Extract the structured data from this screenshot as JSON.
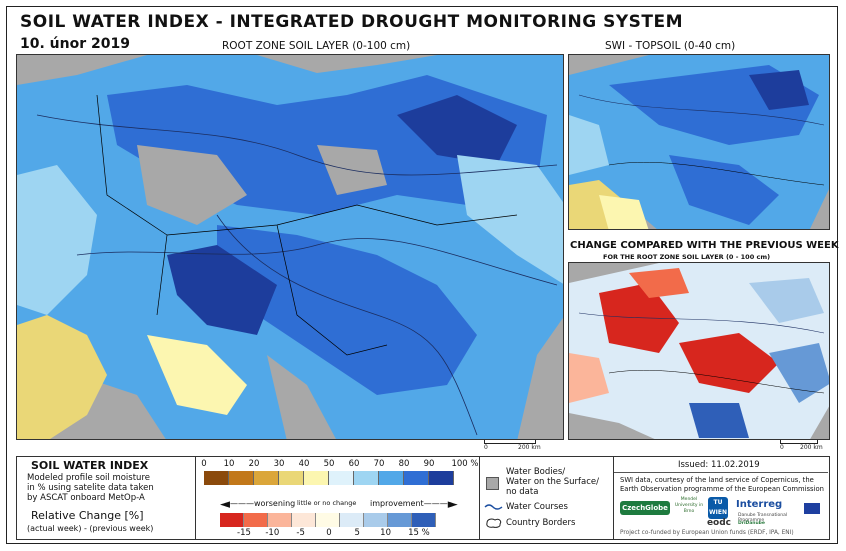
{
  "header": {
    "title": "SOIL WATER INDEX - INTEGRATED DROUGHT MONITORING SYSTEM",
    "date": "10. únor 2019",
    "main_subtitle": "ROOT ZONE SOIL LAYER (0-100 cm)",
    "topsoil_title": "SWI - TOPSOIL (0-40 cm)",
    "change_title": "CHANGE COMPARED WITH THE PREVIOUS WEEK",
    "change_subtitle": "FOR THE ROOT ZONE SOIL LAYER (0 - 100 cm)"
  },
  "scale_bars": {
    "main": {
      "zero": "0",
      "distance": "200 km"
    },
    "small": {
      "zero": "0",
      "distance": "200 km"
    }
  },
  "legend_left": {
    "title": "SOIL WATER INDEX",
    "desc1": "Modeled profile soil moisture",
    "desc2": "in % using satelite data taken",
    "desc3": "by ASCAT onboard MetOp-A",
    "change_title": "Relative Change [%]",
    "change_desc": "(actual week) - (previous week)"
  },
  "swi_scale": {
    "ticks": [
      "0",
      "10",
      "20",
      "30",
      "40",
      "50",
      "60",
      "70",
      "80",
      "90",
      "100 %"
    ],
    "colors": [
      "#8b4a0c",
      "#c2781a",
      "#dba63a",
      "#ead777",
      "#fcf6b0",
      "#dff2fb",
      "#9ed5f2",
      "#52a8e8",
      "#2f6ed4",
      "#1d3d9c"
    ]
  },
  "change_scale": {
    "worsening": "worsening",
    "little": "little or no change",
    "improvement": "improvement",
    "ticks": [
      "-15",
      "-10",
      "-5",
      "0",
      "5",
      "10",
      "15 %"
    ],
    "colors": [
      "#d7261e",
      "#f26b4a",
      "#fbb59a",
      "#fde7d8",
      "#fffbe5",
      "#dcebf7",
      "#a9cbea",
      "#6699d6",
      "#2f5fb8"
    ]
  },
  "legend_mid": {
    "water_bodies": "Water Bodies/",
    "water_surface": "Water on the Surface/",
    "no_data": "no data",
    "water_courses": "Water Courses",
    "country_borders": "Country Borders"
  },
  "legend_right": {
    "issued": "Issued: 11.02.2019",
    "credit1": "SWI data, courtesy of the land service of Copernicus, the",
    "credit2": "Earth Observation programme of the European Commission",
    "cofunded": "Project co-funded by European Union funds (ERDF, IPA, ENI)",
    "logo_czechglobe": "CzechGlobe",
    "logo_mendel": "Mendel University in Brno",
    "logo_tu": "TU WIEN",
    "logo_eodc": "eodc",
    "logo_interreg": "Interreg",
    "logo_danube": "Danube Transnational Programme",
    "logo_drought": "DriDanube"
  },
  "colors": {
    "sea_no_data": "#a8a8a8",
    "wet_blue": "#2f6ed4",
    "dry_yellow": "#ead777",
    "change_red": "#d7261e"
  }
}
